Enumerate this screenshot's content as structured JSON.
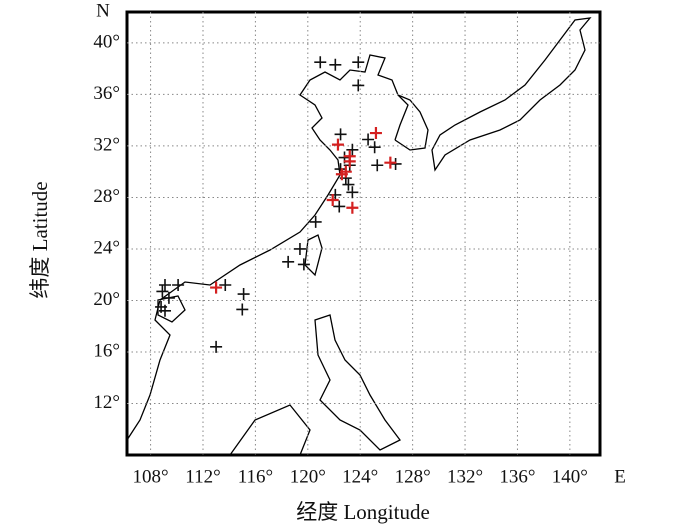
{
  "chart_data": {
    "type": "scatter",
    "xlabel": "经度 Longitude",
    "ylabel": "纬度 Latitude",
    "x_end_label": "E",
    "y_end_label": "N",
    "xlim": [
      106.2,
      142.3
    ],
    "ylim": [
      8,
      42.4
    ],
    "xticks": [
      {
        "value": 108,
        "label": "108°"
      },
      {
        "value": 112,
        "label": "112°"
      },
      {
        "value": 116,
        "label": "116°"
      },
      {
        "value": 120,
        "label": "120°"
      },
      {
        "value": 124,
        "label": "124°"
      },
      {
        "value": 128,
        "label": "128°"
      },
      {
        "value": 132,
        "label": "132°"
      },
      {
        "value": 136,
        "label": "136°"
      },
      {
        "value": 140,
        "label": "140°"
      }
    ],
    "yticks": [
      {
        "value": 12,
        "label": "12°"
      },
      {
        "value": 16,
        "label": "16°"
      },
      {
        "value": 20,
        "label": "20°"
      },
      {
        "value": 24,
        "label": "24°"
      },
      {
        "value": 28,
        "label": "28°"
      },
      {
        "value": 32,
        "label": "32°"
      },
      {
        "value": 36,
        "label": "36°"
      },
      {
        "value": 40,
        "label": "40°"
      }
    ],
    "grid": true,
    "series": [
      {
        "color": "#111111",
        "x": [
          120.95,
          122.1,
          123.85,
          123.85,
          122.5,
          124.6,
          125.1,
          123.4,
          122.8,
          123.2,
          125.3,
          122.5,
          122.9,
          123.1,
          123.4,
          122.1,
          122.4,
          120.6,
          119.4,
          118.5,
          119.7,
          109.1,
          110.1,
          108.9,
          109.4,
          108.8,
          109.1,
          113.7,
          115.1,
          115.0,
          113.0,
          126.7
        ],
        "values": [
          38.5,
          38.3,
          38.5,
          36.7,
          32.9,
          32.5,
          31.9,
          31.7,
          31.1,
          30.5,
          30.5,
          30.2,
          29.5,
          29.0,
          28.4,
          28.2,
          27.3,
          26.1,
          24.0,
          23.0,
          22.8,
          21.2,
          21.2,
          20.7,
          20.2,
          19.5,
          19.2,
          21.2,
          20.5,
          19.3,
          16.4,
          30.6
        ]
      },
      {
        "color": "#d42020",
        "x": [
          122.3,
          125.2,
          123.2,
          122.9,
          122.6,
          121.9,
          123.4,
          126.3,
          113.0,
          123.2
        ],
        "values": [
          32.1,
          33.0,
          31.2,
          30.0,
          29.8,
          27.8,
          27.2,
          30.7,
          21.0,
          30.8
        ]
      }
    ]
  }
}
